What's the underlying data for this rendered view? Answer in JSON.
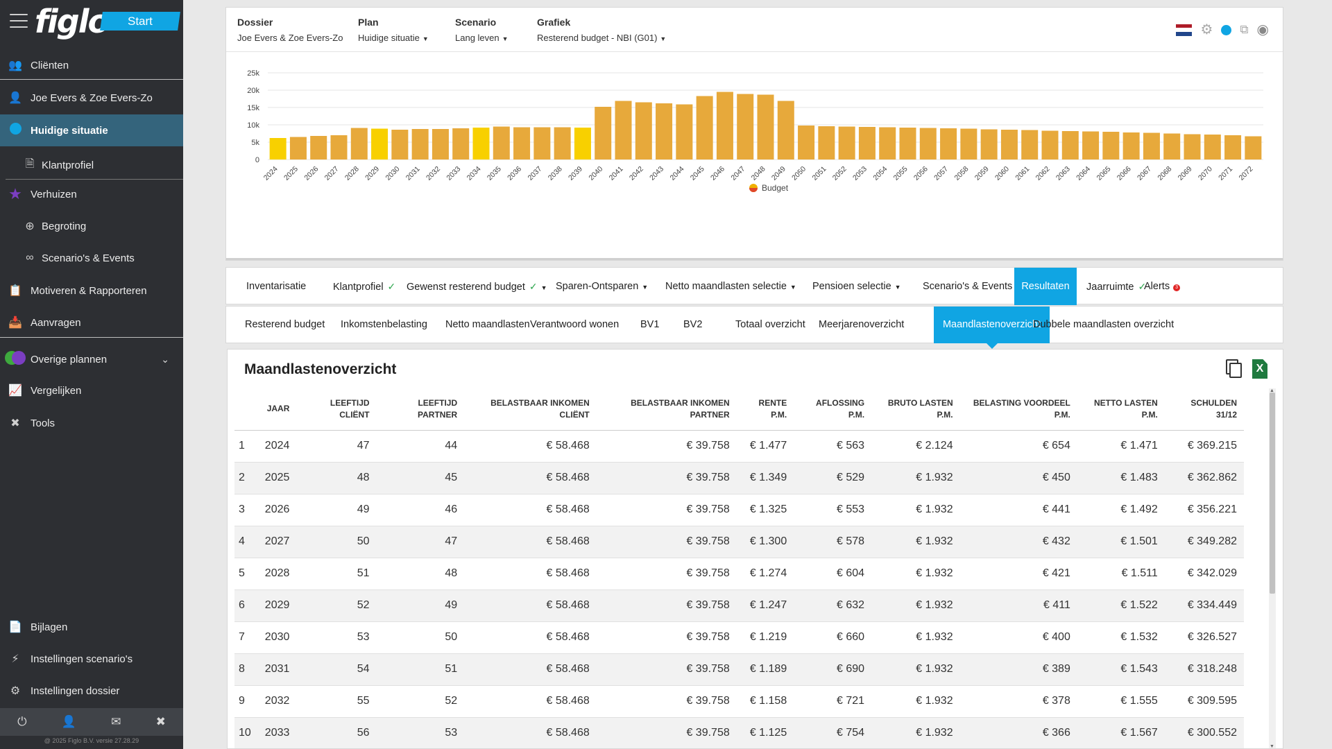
{
  "app": {
    "logo_text": "figlo",
    "start_label": "Start",
    "version": "@ 2025 Figlo B.V. versie 27.28.29"
  },
  "sidebar": {
    "clienten": "Cliënten",
    "client_name": "Joe Evers & Zoe Evers-Zo",
    "huidige_situatie": "Huidige situatie",
    "klantprofiel": "Klantprofiel",
    "verhuizen": "Verhuizen",
    "begroting": "Begroting",
    "scenarios": "Scenario's & Events",
    "motiveren": "Motiveren & Rapporteren",
    "aanvragen": "Aanvragen",
    "overige_plannen": "Overige plannen",
    "vergelijken": "Vergelijken",
    "tools": "Tools",
    "bijlagen": "Bijlagen",
    "instellingen_scenarios": "Instellingen scenario's",
    "instellingen_dossier": "Instellingen dossier"
  },
  "filters": {
    "dossier_label": "Dossier",
    "dossier_value": "Joe Evers & Zoe Evers-Zo",
    "plan_label": "Plan",
    "plan_value": "Huidige situatie",
    "scenario_label": "Scenario",
    "scenario_value": "Lang leven",
    "grafiek_label": "Grafiek",
    "grafiek_value": "Resterend budget - NBI (G01)"
  },
  "colors": {
    "accent": "#10a5e3",
    "sidebar_bg": "#2d2f33",
    "bar_normal": "#e7a93b",
    "bar_highlight": "#f8d000"
  },
  "chart_data": {
    "type": "bar",
    "categories": [
      "2024",
      "2025",
      "2026",
      "2027",
      "2028",
      "2029",
      "2030",
      "2031",
      "2032",
      "2033",
      "2034",
      "2035",
      "2036",
      "2037",
      "2038",
      "2039",
      "2040",
      "2041",
      "2042",
      "2043",
      "2044",
      "2045",
      "2046",
      "2047",
      "2048",
      "2049",
      "2050",
      "2051",
      "2052",
      "2053",
      "2054",
      "2055",
      "2056",
      "2057",
      "2058",
      "2059",
      "2060",
      "2061",
      "2062",
      "2063",
      "2064",
      "2065",
      "2066",
      "2067",
      "2068",
      "2069",
      "2070",
      "2071",
      "2072"
    ],
    "series": [
      {
        "name": "Budget",
        "values": [
          6200,
          6500,
          6800,
          7000,
          9100,
          8900,
          8600,
          8800,
          8800,
          9000,
          9200,
          9500,
          9300,
          9300,
          9300,
          9200,
          15200,
          16900,
          16500,
          16200,
          15900,
          18300,
          19500,
          18900,
          18700,
          16900,
          9800,
          9600,
          9500,
          9400,
          9300,
          9200,
          9100,
          9000,
          8900,
          8700,
          8600,
          8500,
          8300,
          8200,
          8100,
          8000,
          7800,
          7700,
          7500,
          7300,
          7200,
          7000,
          6700
        ]
      }
    ],
    "highlighted_categories": [
      "2024",
      "2029",
      "2034",
      "2039"
    ],
    "yticks": [
      "0",
      "5k",
      "10k",
      "15k",
      "20k",
      "25k"
    ],
    "ylim": [
      0,
      25000
    ],
    "grid": true,
    "legend": "bottom-center"
  },
  "tabs_main": [
    {
      "label": "Inventarisatie",
      "check": false,
      "dropdown": false
    },
    {
      "label": "Klantprofiel",
      "check": true,
      "dropdown": false
    },
    {
      "label": "Gewenst resterend budget",
      "check": true,
      "dropdown": true
    },
    {
      "label": "Sparen-Ontsparen",
      "check": false,
      "dropdown": true
    },
    {
      "label": "Netto maandlasten selectie",
      "check": false,
      "dropdown": true
    },
    {
      "label": "Pensioen selectie",
      "check": false,
      "dropdown": true
    },
    {
      "label": "Scenario's & Events",
      "check": false,
      "dropdown": false
    },
    {
      "label": "Resultaten",
      "check": false,
      "dropdown": false,
      "active": true
    },
    {
      "label": "Jaarruimte",
      "check": true,
      "dropdown": false
    },
    {
      "label": "Alerts",
      "check": false,
      "dropdown": false,
      "alert_count": "3"
    }
  ],
  "tabs_sub": [
    "Resterend budget",
    "Inkomstenbelasting",
    "Netto maandlasten",
    "Verantwoord wonen",
    "BV1",
    "BV2",
    "Totaal overzicht",
    "Meerjarenoverzicht",
    "Maandlastenoverzicht",
    "Dubbele maandlasten overzicht"
  ],
  "content": {
    "title": "Maandlastenoverzicht"
  },
  "table": {
    "headers": [
      "",
      "JAAR",
      "LEEFTIJD CLIËNT",
      "LEEFTIJD PARTNER",
      "BELASTBAAR INKOMEN CLIËNT",
      "BELASTBAAR INKOMEN PARTNER",
      "RENTE P.M.",
      "AFLOSSING P.M.",
      "BRUTO LASTEN P.M.",
      "BELASTING VOORDEEL P.M.",
      "NETTO LASTEN P.M.",
      "SCHULDEN 31/12"
    ],
    "rows": [
      [
        "1",
        "2024",
        "47",
        "44",
        "€ 58.468",
        "€ 39.758",
        "€ 1.477",
        "€ 563",
        "€ 2.124",
        "€ 654",
        "€ 1.471",
        "€ 369.215"
      ],
      [
        "2",
        "2025",
        "48",
        "45",
        "€ 58.468",
        "€ 39.758",
        "€ 1.349",
        "€ 529",
        "€ 1.932",
        "€ 450",
        "€ 1.483",
        "€ 362.862"
      ],
      [
        "3",
        "2026",
        "49",
        "46",
        "€ 58.468",
        "€ 39.758",
        "€ 1.325",
        "€ 553",
        "€ 1.932",
        "€ 441",
        "€ 1.492",
        "€ 356.221"
      ],
      [
        "4",
        "2027",
        "50",
        "47",
        "€ 58.468",
        "€ 39.758",
        "€ 1.300",
        "€ 578",
        "€ 1.932",
        "€ 432",
        "€ 1.501",
        "€ 349.282"
      ],
      [
        "5",
        "2028",
        "51",
        "48",
        "€ 58.468",
        "€ 39.758",
        "€ 1.274",
        "€ 604",
        "€ 1.932",
        "€ 421",
        "€ 1.511",
        "€ 342.029"
      ],
      [
        "6",
        "2029",
        "52",
        "49",
        "€ 58.468",
        "€ 39.758",
        "€ 1.247",
        "€ 632",
        "€ 1.932",
        "€ 411",
        "€ 1.522",
        "€ 334.449"
      ],
      [
        "7",
        "2030",
        "53",
        "50",
        "€ 58.468",
        "€ 39.758",
        "€ 1.219",
        "€ 660",
        "€ 1.932",
        "€ 400",
        "€ 1.532",
        "€ 326.527"
      ],
      [
        "8",
        "2031",
        "54",
        "51",
        "€ 58.468",
        "€ 39.758",
        "€ 1.189",
        "€ 690",
        "€ 1.932",
        "€ 389",
        "€ 1.543",
        "€ 318.248"
      ],
      [
        "9",
        "2032",
        "55",
        "52",
        "€ 58.468",
        "€ 39.758",
        "€ 1.158",
        "€ 721",
        "€ 1.932",
        "€ 378",
        "€ 1.555",
        "€ 309.595"
      ],
      [
        "10",
        "2033",
        "56",
        "53",
        "€ 58.468",
        "€ 39.758",
        "€ 1.125",
        "€ 754",
        "€ 1.932",
        "€ 366",
        "€ 1.567",
        "€ 300.552"
      ]
    ]
  }
}
